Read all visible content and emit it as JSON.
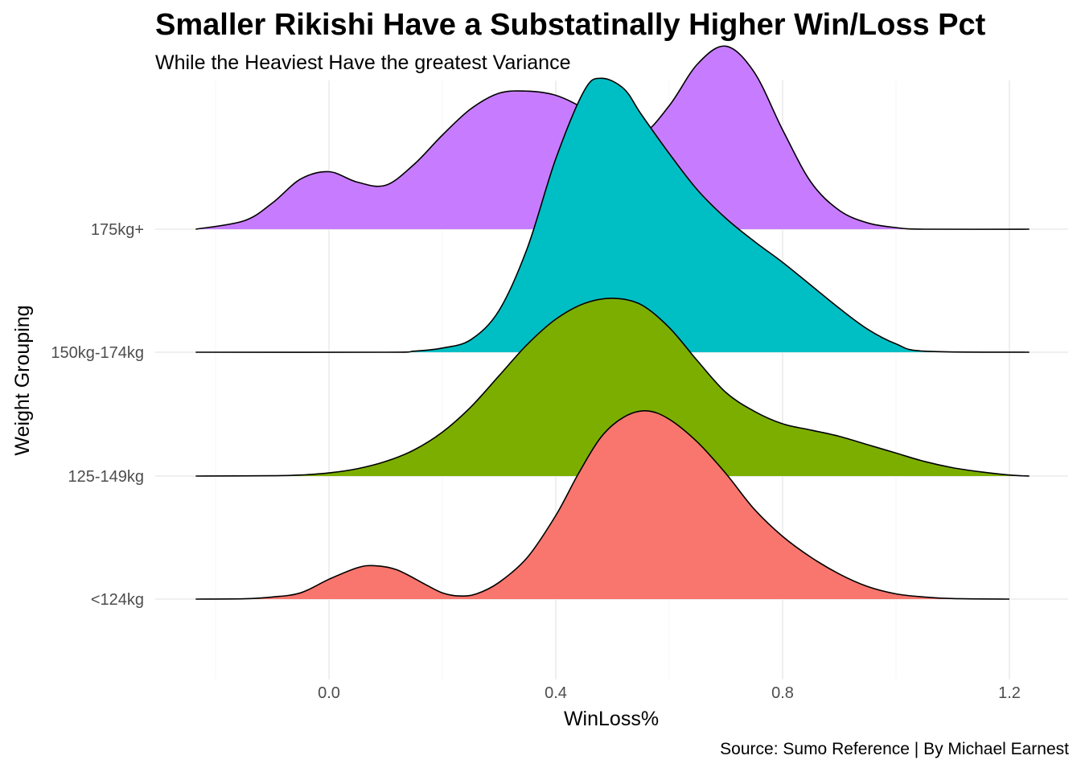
{
  "chart_data": {
    "type": "ridgeline",
    "title": "Smaller Rikishi Have a Substatinally Higher Win/Loss Pct",
    "subtitle": "While the Heaviest Have the greatest Variance",
    "xlabel": "WinLoss%",
    "ylabel": "Weight Grouping",
    "caption": "Source: Sumo Reference | By Michael Earnest",
    "x_ticks": [
      0.0,
      0.4,
      0.8,
      1.2
    ],
    "x_tick_labels": [
      "0.0",
      "0.4",
      "0.8",
      "1.2"
    ],
    "xlim": [
      -0.235,
      1.235
    ],
    "grid": true,
    "ridge_scale_note_units": "relative density",
    "categories": [
      "<124kg",
      "125-149kg",
      "150kg-174kg",
      "175kg+"
    ],
    "series": [
      {
        "name": "<124kg",
        "color": "#F8766D",
        "x": [
          -0.235,
          -0.15,
          -0.1,
          -0.05,
          0.0,
          0.05,
          0.08,
          0.12,
          0.17,
          0.2,
          0.23,
          0.26,
          0.3,
          0.35,
          0.4,
          0.44,
          0.48,
          0.52,
          0.56,
          0.6,
          0.65,
          0.7,
          0.75,
          0.8,
          0.85,
          0.9,
          0.95,
          1.0,
          1.05,
          1.1,
          1.2
        ],
        "y": [
          0.0,
          0.003,
          0.02,
          0.06,
          0.19,
          0.3,
          0.32,
          0.28,
          0.14,
          0.06,
          0.03,
          0.05,
          0.16,
          0.4,
          0.8,
          1.2,
          1.55,
          1.74,
          1.8,
          1.72,
          1.5,
          1.2,
          0.86,
          0.6,
          0.4,
          0.24,
          0.12,
          0.05,
          0.02,
          0.005,
          0.0
        ]
      },
      {
        "name": "125-149kg",
        "color": "#7CAE00",
        "x": [
          -0.235,
          -0.1,
          -0.05,
          0.0,
          0.05,
          0.1,
          0.15,
          0.2,
          0.25,
          0.3,
          0.35,
          0.4,
          0.45,
          0.5,
          0.55,
          0.6,
          0.65,
          0.7,
          0.75,
          0.8,
          0.85,
          0.9,
          0.95,
          1.0,
          1.05,
          1.1,
          1.15,
          1.2,
          1.235
        ],
        "y": [
          0.0,
          0.003,
          0.01,
          0.03,
          0.07,
          0.14,
          0.25,
          0.42,
          0.66,
          0.96,
          1.26,
          1.5,
          1.65,
          1.7,
          1.64,
          1.42,
          1.1,
          0.8,
          0.62,
          0.5,
          0.44,
          0.38,
          0.3,
          0.22,
          0.14,
          0.08,
          0.04,
          0.01,
          0.0
        ]
      },
      {
        "name": "150kg-174kg",
        "color": "#00BFC4",
        "x": [
          -0.235,
          0.1,
          0.15,
          0.2,
          0.25,
          0.3,
          0.35,
          0.4,
          0.45,
          0.48,
          0.52,
          0.55,
          0.6,
          0.65,
          0.7,
          0.75,
          0.8,
          0.85,
          0.9,
          0.95,
          1.0,
          1.05,
          1.235
        ],
        "y": [
          0.0,
          0.0,
          0.01,
          0.04,
          0.12,
          0.4,
          1.0,
          1.85,
          2.5,
          2.62,
          2.52,
          2.28,
          1.9,
          1.55,
          1.28,
          1.06,
          0.86,
          0.64,
          0.42,
          0.22,
          0.08,
          0.01,
          0.0
        ]
      },
      {
        "name": "175kg+",
        "color": "#C77CFF",
        "x": [
          -0.235,
          -0.15,
          -0.1,
          -0.05,
          0.0,
          0.05,
          0.1,
          0.15,
          0.2,
          0.25,
          0.3,
          0.35,
          0.4,
          0.45,
          0.5,
          0.55,
          0.6,
          0.65,
          0.7,
          0.75,
          0.8,
          0.85,
          0.9,
          0.95,
          1.0,
          1.05,
          1.235
        ],
        "y": [
          0.0,
          0.08,
          0.25,
          0.48,
          0.55,
          0.45,
          0.42,
          0.62,
          0.9,
          1.15,
          1.3,
          1.32,
          1.28,
          1.15,
          0.95,
          0.9,
          1.18,
          1.58,
          1.75,
          1.5,
          0.95,
          0.45,
          0.18,
          0.06,
          0.015,
          0.0,
          0.0
        ]
      }
    ]
  }
}
